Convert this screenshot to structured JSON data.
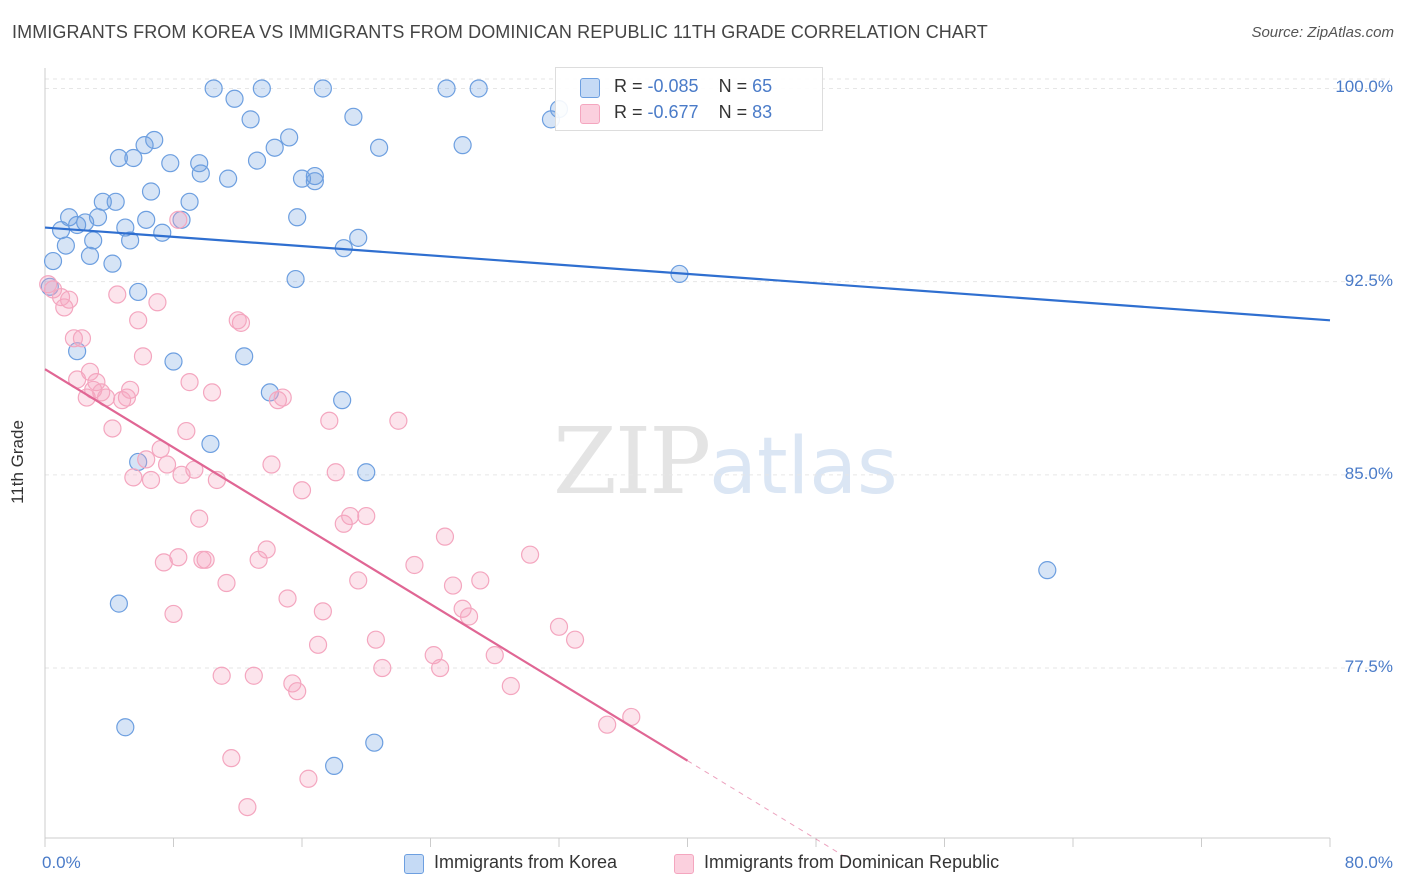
{
  "header": {
    "title": "IMMIGRANTS FROM KOREA VS IMMIGRANTS FROM DOMINICAN REPUBLIC 11TH GRADE CORRELATION CHART",
    "source": "Source: ZipAtlas.com"
  },
  "watermark": {
    "zip": "ZIP",
    "atlas": "atlas"
  },
  "legend_top": {
    "rows": [
      {
        "r_label": "R =",
        "r_value": "-0.085",
        "n_label": "N =",
        "n_value": "65"
      },
      {
        "r_label": "R =",
        "r_value": "-0.677",
        "n_label": "N =",
        "n_value": "83"
      }
    ]
  },
  "chart_data": {
    "type": "scatter",
    "title": "IMMIGRANTS FROM KOREA VS IMMIGRANTS FROM DOMINICAN REPUBLIC 11TH GRADE CORRELATION CHART",
    "xlabel": "",
    "ylabel": "11th Grade",
    "xlim": [
      0,
      80
    ],
    "ylim": [
      70.9,
      101.3
    ],
    "x_tick_labels": [
      "0.0%",
      "80.0%"
    ],
    "y_ticks": [
      77.5,
      85.0,
      92.5,
      100.0
    ],
    "y_tick_labels": [
      "77.5%",
      "85.0%",
      "92.5%",
      "100.0%"
    ],
    "grid": true,
    "legend": "bottom",
    "series": [
      {
        "name": "Immigrants from Korea",
        "color": "#6d9fe0",
        "trend": {
          "x": [
            0,
            80
          ],
          "y": [
            94.6,
            91.0
          ],
          "color": "#2f6fd0"
        },
        "points": [
          [
            0.3,
            92.3
          ],
          [
            0.5,
            93.3
          ],
          [
            1.0,
            94.5
          ],
          [
            1.3,
            93.9
          ],
          [
            1.5,
            95.0
          ],
          [
            2.0,
            94.7
          ],
          [
            2.0,
            89.8
          ],
          [
            2.5,
            94.8
          ],
          [
            2.8,
            93.5
          ],
          [
            3.0,
            94.1
          ],
          [
            3.3,
            95.0
          ],
          [
            3.6,
            95.6
          ],
          [
            4.2,
            93.2
          ],
          [
            4.4,
            95.6
          ],
          [
            4.6,
            97.3
          ],
          [
            5.0,
            94.6
          ],
          [
            5.3,
            94.1
          ],
          [
            5.5,
            97.3
          ],
          [
            5.8,
            92.1
          ],
          [
            6.2,
            97.8
          ],
          [
            6.3,
            94.9
          ],
          [
            6.6,
            96.0
          ],
          [
            6.8,
            98.0
          ],
          [
            7.3,
            94.4
          ],
          [
            7.8,
            97.1
          ],
          [
            8.0,
            89.4
          ],
          [
            8.5,
            94.9
          ],
          [
            9.0,
            95.6
          ],
          [
            9.6,
            97.1
          ],
          [
            9.7,
            96.7
          ],
          [
            10.5,
            100.0
          ],
          [
            11.4,
            96.5
          ],
          [
            11.8,
            99.6
          ],
          [
            12.4,
            89.6
          ],
          [
            12.8,
            98.8
          ],
          [
            13.2,
            97.2
          ],
          [
            13.5,
            100.0
          ],
          [
            14.0,
            88.2
          ],
          [
            14.3,
            97.7
          ],
          [
            15.2,
            98.1
          ],
          [
            15.6,
            92.6
          ],
          [
            15.7,
            95.0
          ],
          [
            16.0,
            96.5
          ],
          [
            16.8,
            96.6
          ],
          [
            16.8,
            96.4
          ],
          [
            17.3,
            100.0
          ],
          [
            18.0,
            73.7
          ],
          [
            18.5,
            87.9
          ],
          [
            18.6,
            93.8
          ],
          [
            19.2,
            98.9
          ],
          [
            19.5,
            94.2
          ],
          [
            20.0,
            85.1
          ],
          [
            20.5,
            74.6
          ],
          [
            20.8,
            97.7
          ],
          [
            25.0,
            100.0
          ],
          [
            26.0,
            97.8
          ],
          [
            27.0,
            100.0
          ],
          [
            31.5,
            98.8
          ],
          [
            32.0,
            99.2
          ],
          [
            39.5,
            92.8
          ],
          [
            62.4,
            81.3
          ],
          [
            4.6,
            80.0
          ],
          [
            5.8,
            85.5
          ],
          [
            10.3,
            86.2
          ],
          [
            5.0,
            75.2
          ]
        ]
      },
      {
        "name": "Immigrants from Dominican Republic",
        "color": "#f4a6bf",
        "trend": {
          "x": [
            0,
            40
          ],
          "y": [
            89.1,
            73.9
          ],
          "color": "#e06694"
        },
        "trend_extension": {
          "x": [
            40,
            50
          ],
          "y": [
            73.9,
            70.1
          ]
        },
        "points": [
          [
            0.2,
            92.4
          ],
          [
            0.5,
            92.2
          ],
          [
            1.0,
            91.9
          ],
          [
            1.2,
            91.5
          ],
          [
            1.5,
            91.8
          ],
          [
            1.8,
            90.3
          ],
          [
            2.0,
            88.7
          ],
          [
            2.3,
            90.3
          ],
          [
            2.6,
            88.0
          ],
          [
            2.8,
            89.0
          ],
          [
            3.0,
            88.3
          ],
          [
            3.2,
            88.6
          ],
          [
            3.5,
            88.2
          ],
          [
            3.8,
            88.0
          ],
          [
            4.2,
            86.8
          ],
          [
            4.5,
            92.0
          ],
          [
            4.8,
            87.9
          ],
          [
            5.1,
            88.0
          ],
          [
            5.3,
            88.3
          ],
          [
            5.5,
            84.9
          ],
          [
            5.8,
            91.0
          ],
          [
            6.1,
            89.6
          ],
          [
            6.3,
            85.6
          ],
          [
            6.6,
            84.8
          ],
          [
            7.0,
            91.7
          ],
          [
            7.2,
            86.0
          ],
          [
            7.4,
            81.6
          ],
          [
            7.6,
            85.4
          ],
          [
            8.0,
            79.6
          ],
          [
            8.3,
            81.8
          ],
          [
            8.5,
            85.0
          ],
          [
            8.8,
            86.7
          ],
          [
            9.0,
            88.6
          ],
          [
            9.3,
            85.2
          ],
          [
            9.6,
            83.3
          ],
          [
            9.8,
            81.7
          ],
          [
            10.0,
            81.7
          ],
          [
            10.4,
            88.2
          ],
          [
            10.7,
            84.8
          ],
          [
            11.0,
            77.2
          ],
          [
            11.3,
            80.8
          ],
          [
            11.6,
            74.0
          ],
          [
            12.0,
            91.0
          ],
          [
            12.2,
            90.9
          ],
          [
            12.6,
            72.1
          ],
          [
            13.0,
            77.2
          ],
          [
            13.3,
            81.7
          ],
          [
            13.8,
            82.1
          ],
          [
            14.1,
            85.4
          ],
          [
            14.5,
            87.9
          ],
          [
            14.8,
            88.0
          ],
          [
            15.1,
            80.2
          ],
          [
            15.4,
            76.9
          ],
          [
            15.7,
            76.6
          ],
          [
            16.0,
            84.4
          ],
          [
            16.4,
            73.2
          ],
          [
            17.0,
            78.4
          ],
          [
            17.3,
            79.7
          ],
          [
            17.7,
            87.1
          ],
          [
            18.1,
            85.1
          ],
          [
            18.6,
            83.1
          ],
          [
            19.0,
            83.4
          ],
          [
            19.5,
            80.9
          ],
          [
            20.0,
            83.4
          ],
          [
            20.6,
            78.6
          ],
          [
            21.0,
            77.5
          ],
          [
            22.0,
            87.1
          ],
          [
            23.0,
            81.5
          ],
          [
            24.2,
            78.0
          ],
          [
            24.6,
            77.5
          ],
          [
            24.9,
            82.6
          ],
          [
            25.4,
            80.7
          ],
          [
            26.0,
            79.8
          ],
          [
            26.4,
            79.5
          ],
          [
            27.1,
            80.9
          ],
          [
            28.0,
            78.0
          ],
          [
            29.0,
            76.8
          ],
          [
            30.2,
            81.9
          ],
          [
            32.0,
            79.1
          ],
          [
            33.0,
            78.6
          ],
          [
            35.0,
            75.3
          ],
          [
            36.5,
            75.6
          ],
          [
            8.3,
            94.9
          ]
        ]
      }
    ]
  },
  "legend_bottom": {
    "items": [
      {
        "label": "Immigrants from Korea",
        "color": "#6d9fe0"
      },
      {
        "label": "Immigrants from Dominican Republic",
        "color": "#f4a6bf"
      }
    ]
  }
}
